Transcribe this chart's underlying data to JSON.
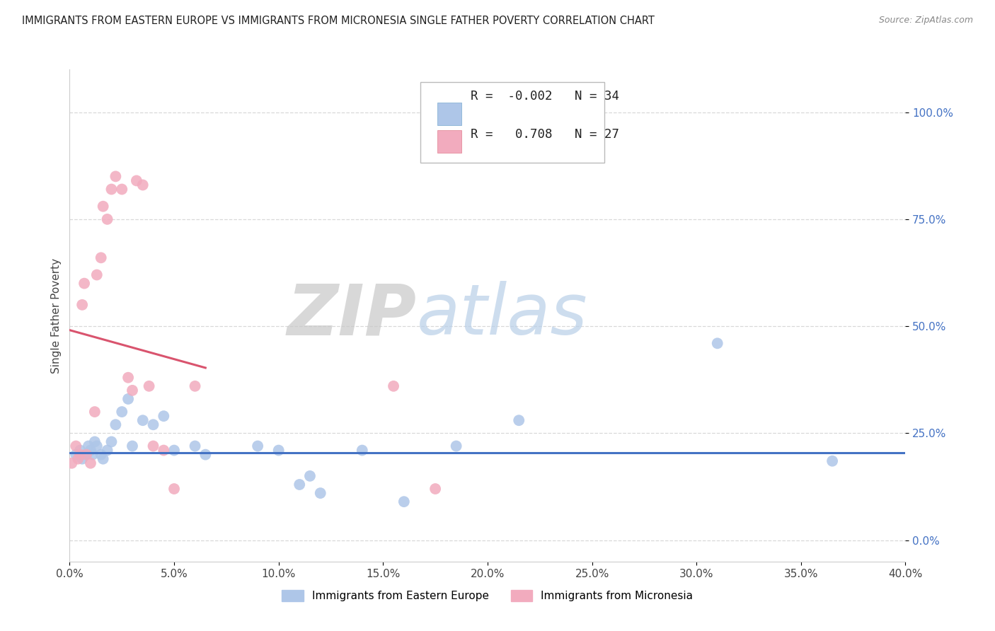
{
  "title": "IMMIGRANTS FROM EASTERN EUROPE VS IMMIGRANTS FROM MICRONESIA SINGLE FATHER POVERTY CORRELATION CHART",
  "source": "Source: ZipAtlas.com",
  "ylabel_label": "Single Father Poverty",
  "legend_label1": "Immigrants from Eastern Europe",
  "legend_label2": "Immigrants from Micronesia",
  "R1": -0.002,
  "N1": 34,
  "R2": 0.708,
  "N2": 27,
  "xlim": [
    0.0,
    0.4
  ],
  "ylim": [
    -0.05,
    1.1
  ],
  "xtick_vals": [
    0.0,
    0.05,
    0.1,
    0.15,
    0.2,
    0.25,
    0.3,
    0.35,
    0.4
  ],
  "ytick_vals": [
    0.0,
    0.25,
    0.5,
    0.75,
    1.0
  ],
  "color_blue": "#aec6e8",
  "color_pink": "#f2abbe",
  "trendline_blue": "#4472C4",
  "trendline_pink": "#d9546e",
  "blue_x": [
    0.003,
    0.005,
    0.006,
    0.008,
    0.009,
    0.01,
    0.011,
    0.012,
    0.013,
    0.015,
    0.016,
    0.018,
    0.02,
    0.022,
    0.025,
    0.028,
    0.03,
    0.035,
    0.04,
    0.045,
    0.05,
    0.06,
    0.065,
    0.09,
    0.1,
    0.11,
    0.115,
    0.12,
    0.14,
    0.16,
    0.185,
    0.215,
    0.31,
    0.365
  ],
  "blue_y": [
    0.2,
    0.21,
    0.19,
    0.2,
    0.22,
    0.21,
    0.2,
    0.23,
    0.22,
    0.2,
    0.19,
    0.21,
    0.23,
    0.27,
    0.3,
    0.33,
    0.22,
    0.28,
    0.27,
    0.29,
    0.21,
    0.22,
    0.2,
    0.22,
    0.21,
    0.13,
    0.15,
    0.11,
    0.21,
    0.09,
    0.22,
    0.28,
    0.46,
    0.185
  ],
  "pink_x": [
    0.001,
    0.003,
    0.004,
    0.005,
    0.006,
    0.007,
    0.008,
    0.01,
    0.012,
    0.013,
    0.015,
    0.016,
    0.018,
    0.02,
    0.022,
    0.025,
    0.028,
    0.03,
    0.032,
    0.035,
    0.038,
    0.04,
    0.045,
    0.05,
    0.06,
    0.155,
    0.175
  ],
  "pink_y": [
    0.18,
    0.22,
    0.19,
    0.2,
    0.55,
    0.6,
    0.2,
    0.18,
    0.3,
    0.62,
    0.66,
    0.78,
    0.75,
    0.82,
    0.85,
    0.82,
    0.38,
    0.35,
    0.84,
    0.83,
    0.36,
    0.22,
    0.21,
    0.12,
    0.36,
    0.36,
    0.12
  ],
  "pink_trend_x0": 0.0,
  "pink_trend_x1": 0.065,
  "blue_trend_x0": 0.0,
  "blue_trend_x1": 0.4,
  "blue_trend_y0": 0.205,
  "blue_trend_y1": 0.205,
  "watermark_zip": "ZIP",
  "watermark_atlas": "atlas",
  "background_color": "#ffffff",
  "grid_color": "#d8d8d8"
}
